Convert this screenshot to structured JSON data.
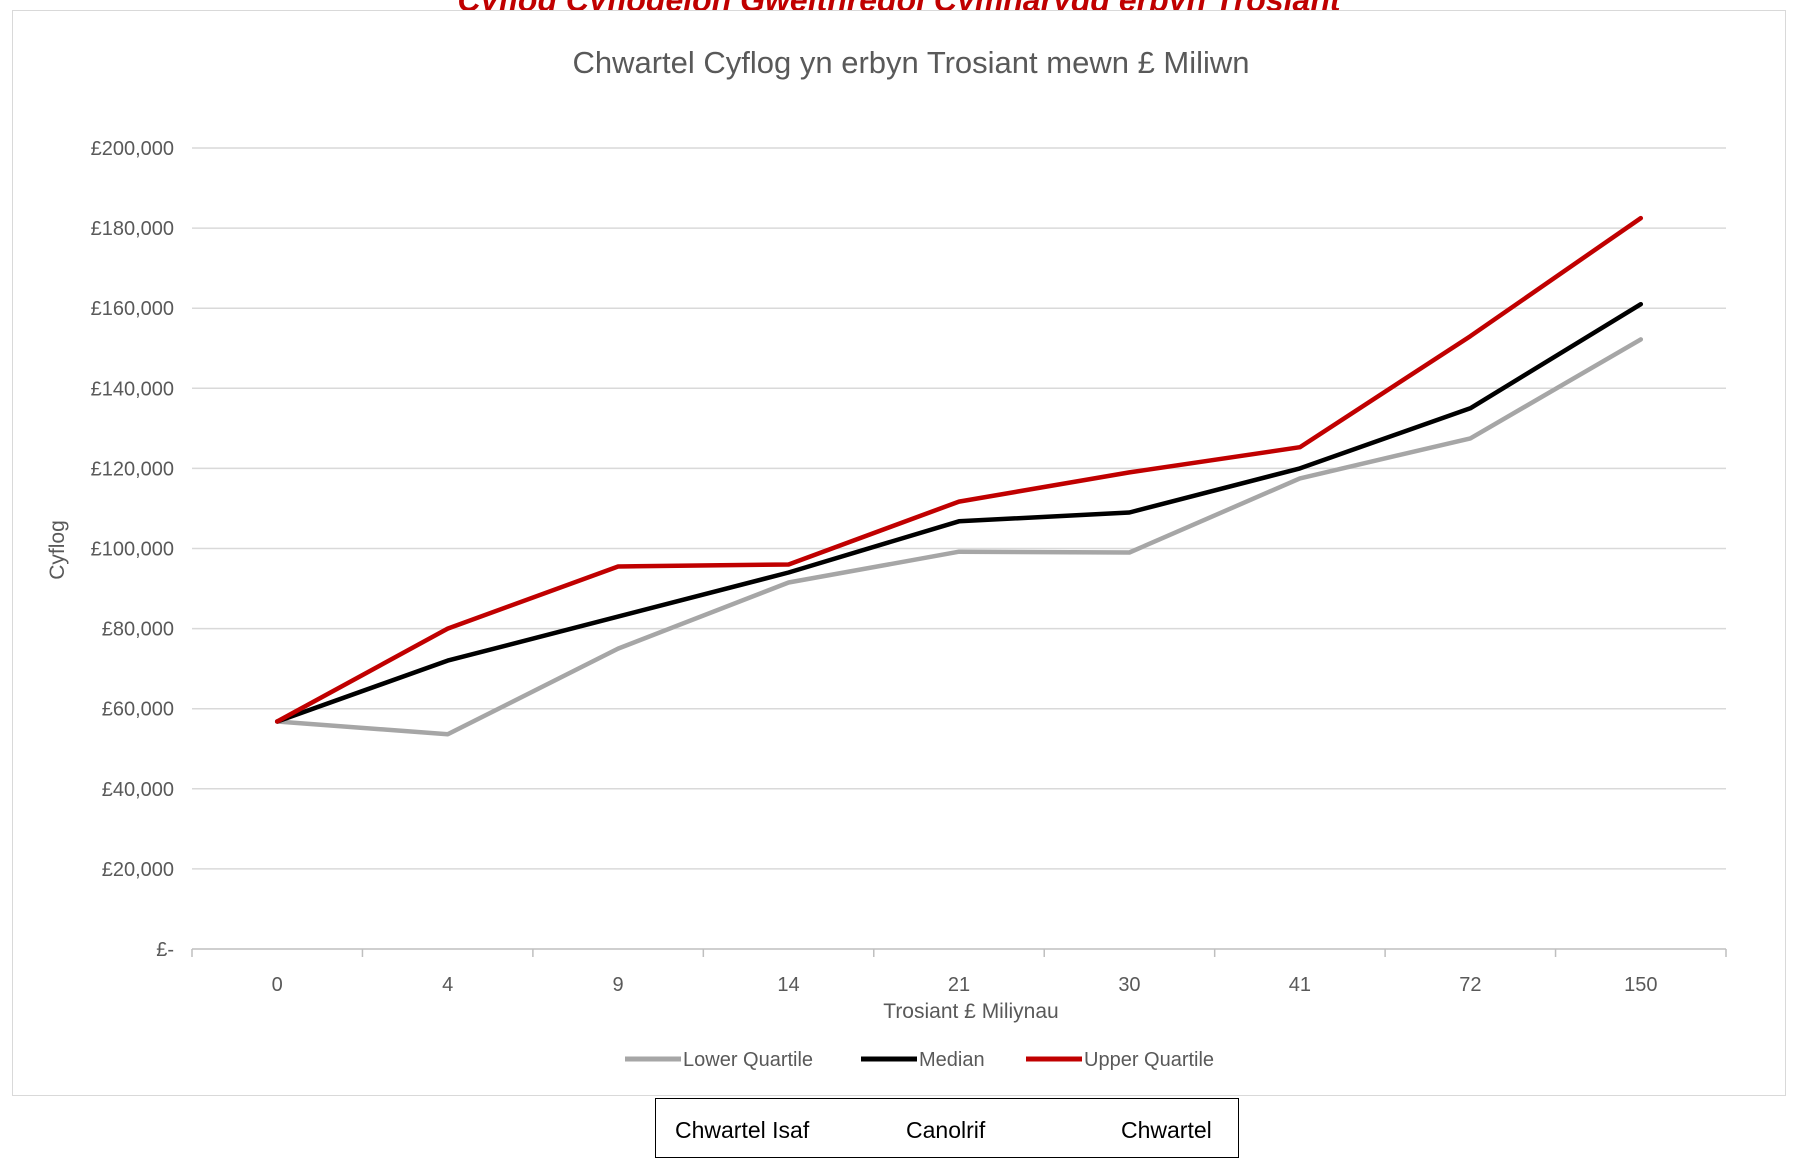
{
  "heading": {
    "text": "Cyflog Cyflogeion Gweithredol Cymharydd erbyn Trosiant",
    "color": "#c00000"
  },
  "chart_data": {
    "type": "line",
    "title": "Chwartel Cyflog yn erbyn Trosiant mewn £ Miliwn",
    "xlabel": "Trosiant £ Miliynau",
    "ylabel": "Cyflog",
    "categories": [
      "0",
      "4",
      "9",
      "14",
      "21",
      "30",
      "41",
      "72",
      "150"
    ],
    "ylim": [
      0,
      200000
    ],
    "ytick_step": 20000,
    "ytick_labels": [
      "£-",
      "£20,000",
      "£40,000",
      "£60,000",
      "£80,000",
      "£100,000",
      "£120,000",
      "£140,000",
      "£160,000",
      "£180,000",
      "£200,000"
    ],
    "grid": true,
    "legend_position": "bottom",
    "series": [
      {
        "name": "Lower Quartile",
        "color": "#a6a6a6",
        "values": [
          56800,
          53600,
          75000,
          91500,
          99200,
          99000,
          117500,
          127500,
          152200
        ]
      },
      {
        "name": "Median",
        "color": "#000000",
        "values": [
          56800,
          72000,
          83000,
          94000,
          106800,
          109000,
          120000,
          135000,
          161000
        ]
      },
      {
        "name": "Upper Quartile",
        "color": "#c00000",
        "values": [
          56800,
          80000,
          95500,
          96000,
          111700,
          119000,
          125300,
          153000,
          182500
        ]
      }
    ]
  },
  "legend_table": {
    "lower": "Chwartel Isaf",
    "median": "Canolrif",
    "upper": "Chwartel"
  }
}
